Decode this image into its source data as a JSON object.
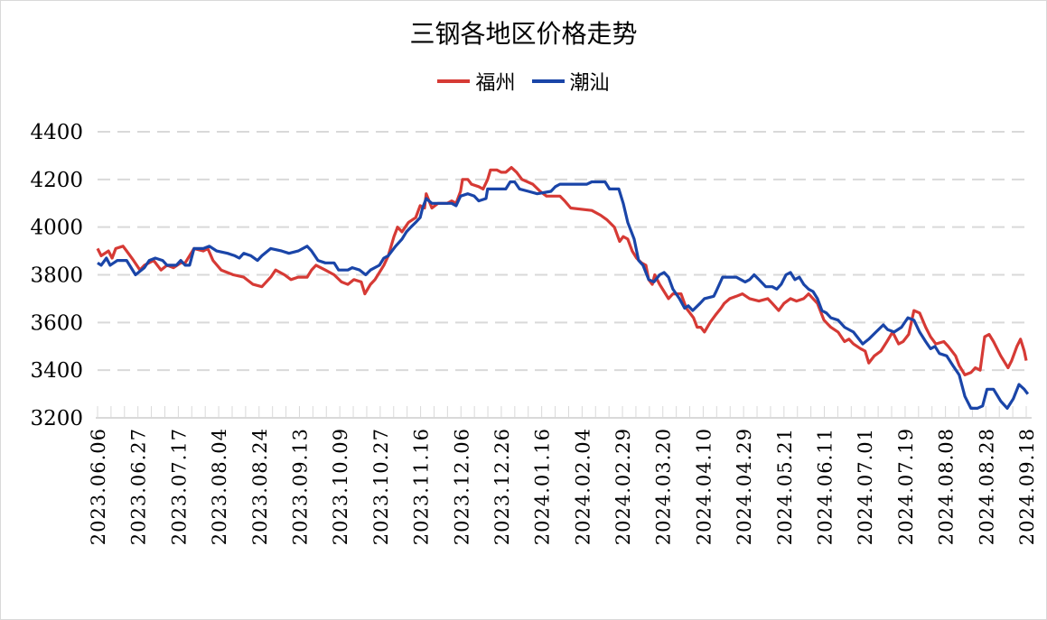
{
  "chart_data": {
    "type": "line",
    "title": "三钢各地区价格走势",
    "xlabel": "",
    "ylabel": "",
    "ylim": [
      3200,
      4400
    ],
    "yticks": [
      3200,
      3400,
      3600,
      3800,
      4000,
      4200,
      4400
    ],
    "grid": true,
    "legend_position": "top",
    "categories": [
      "2023.06.06",
      "2023.06.27",
      "2023.07.17",
      "2023.08.04",
      "2023.08.24",
      "2023.09.13",
      "2023.10.09",
      "2023.10.27",
      "2023.11.16",
      "2023.12.06",
      "2023.12.26",
      "2024.01.16",
      "2024.02.04",
      "2024.02.29",
      "2024.03.20",
      "2024.04.10",
      "2024.04.29",
      "2024.05.21",
      "2024.06.11",
      "2024.07.01",
      "2024.07.19",
      "2024.08.08",
      "2024.08.28",
      "2024.09.18"
    ],
    "series": [
      {
        "name": "福州",
        "color": "#d63a35",
        "x": [
          0,
          0.09,
          0.27,
          0.36,
          0.45,
          0.63,
          0.72,
          0.89,
          1.05,
          1.16,
          1.39,
          1.57,
          1.72,
          1.88,
          2.06,
          2.17,
          2.39,
          2.62,
          2.73,
          2.86,
          3.06,
          3.36,
          3.62,
          3.85,
          4.07,
          4.29,
          4.41,
          4.63,
          4.79,
          4.97,
          5.19,
          5.3,
          5.41,
          5.64,
          5.86,
          6.04,
          6.2,
          6.35,
          6.53,
          6.62,
          6.76,
          6.87,
          6.98,
          7.09,
          7.2,
          7.34,
          7.43,
          7.54,
          7.7,
          7.88,
          7.99,
          8.1,
          8.14,
          8.28,
          8.43,
          8.66,
          8.77,
          8.88,
          8.99,
          9.04,
          9.17,
          9.26,
          9.44,
          9.55,
          9.66,
          9.73,
          9.89,
          10.0,
          10.11,
          10.25,
          10.38,
          10.51,
          10.78,
          10.96,
          11.12,
          11.45,
          11.57,
          11.72,
          12.24,
          12.46,
          12.62,
          12.8,
          12.93,
          13.02,
          13.13,
          13.24,
          13.35,
          13.47,
          13.58,
          13.65,
          13.74,
          13.8,
          13.92,
          14.03,
          14.14,
          14.25,
          14.36,
          14.45,
          14.58,
          14.76,
          14.85,
          14.94,
          15.03,
          15.17,
          15.3,
          15.44,
          15.52,
          15.66,
          15.82,
          15.97,
          16.15,
          16.38,
          16.6,
          16.71,
          16.87,
          17.0,
          17.16,
          17.31,
          17.49,
          17.61,
          17.72,
          17.83,
          17.99,
          18.16,
          18.34,
          18.5,
          18.61,
          18.72,
          18.9,
          19.01,
          19.1,
          19.24,
          19.4,
          19.55,
          19.69,
          19.84,
          19.95,
          20.09,
          20.22,
          20.36,
          20.51,
          20.63,
          20.76,
          20.96,
          21.07,
          21.25,
          21.34,
          21.48,
          21.63,
          21.74,
          21.86,
          21.97,
          22.08,
          22.19,
          22.37,
          22.55,
          22.64,
          22.77,
          22.86,
          22.95,
          23.0
        ],
        "y": [
          3910,
          3880,
          3900,
          3870,
          3910,
          3920,
          3900,
          3860,
          3820,
          3840,
          3860,
          3820,
          3840,
          3830,
          3850,
          3850,
          3910,
          3900,
          3910,
          3860,
          3820,
          3800,
          3790,
          3760,
          3750,
          3790,
          3820,
          3800,
          3780,
          3790,
          3790,
          3820,
          3840,
          3820,
          3800,
          3770,
          3760,
          3780,
          3770,
          3720,
          3760,
          3780,
          3810,
          3840,
          3880,
          3960,
          4000,
          3980,
          4020,
          4040,
          4090,
          4080,
          4140,
          4080,
          4100,
          4100,
          4110,
          4100,
          4150,
          4200,
          4200,
          4180,
          4170,
          4160,
          4200,
          4240,
          4240,
          4230,
          4230,
          4250,
          4230,
          4200,
          4180,
          4150,
          4130,
          4130,
          4110,
          4080,
          4070,
          4050,
          4030,
          4000,
          3940,
          3960,
          3950,
          3900,
          3870,
          3850,
          3840,
          3780,
          3760,
          3800,
          3760,
          3730,
          3700,
          3720,
          3720,
          3720,
          3660,
          3620,
          3580,
          3580,
          3560,
          3600,
          3630,
          3660,
          3680,
          3700,
          3710,
          3720,
          3700,
          3690,
          3700,
          3680,
          3650,
          3680,
          3700,
          3690,
          3700,
          3720,
          3700,
          3680,
          3610,
          3580,
          3560,
          3520,
          3530,
          3510,
          3490,
          3480,
          3430,
          3460,
          3480,
          3520,
          3560,
          3510,
          3520,
          3550,
          3650,
          3640,
          3580,
          3540,
          3510,
          3520,
          3500,
          3460,
          3420,
          3380,
          3390,
          3410,
          3400,
          3540,
          3550,
          3520,
          3460,
          3410,
          3440,
          3500,
          3530,
          3480,
          3440
        ]
      },
      {
        "name": "潮汕",
        "color": "#1a45a8",
        "x": [
          0,
          0.09,
          0.22,
          0.31,
          0.49,
          0.72,
          0.94,
          1.16,
          1.28,
          1.43,
          1.61,
          1.72,
          1.95,
          2.06,
          2.17,
          2.28,
          2.39,
          2.62,
          2.77,
          2.95,
          3.22,
          3.4,
          3.51,
          3.62,
          3.8,
          3.96,
          4.07,
          4.29,
          4.56,
          4.74,
          4.97,
          5.19,
          5.3,
          5.46,
          5.64,
          5.86,
          5.97,
          6.2,
          6.31,
          6.49,
          6.64,
          6.76,
          6.98,
          7.09,
          7.2,
          7.38,
          7.54,
          7.65,
          7.76,
          7.88,
          7.99,
          8.05,
          8.14,
          8.28,
          8.77,
          8.88,
          8.99,
          9.17,
          9.33,
          9.44,
          9.62,
          9.66,
          10.11,
          10.22,
          10.33,
          10.45,
          10.67,
          10.89,
          11.23,
          11.34,
          11.45,
          12.12,
          12.24,
          12.57,
          12.68,
          12.91,
          13.02,
          13.13,
          13.29,
          13.4,
          13.51,
          13.65,
          13.78,
          13.92,
          14.03,
          14.14,
          14.25,
          14.41,
          14.54,
          14.63,
          14.74,
          14.92,
          15.03,
          15.26,
          15.32,
          15.48,
          15.82,
          15.93,
          16.04,
          16.15,
          16.26,
          16.38,
          16.55,
          16.71,
          16.82,
          16.93,
          17.05,
          17.16,
          17.27,
          17.38,
          17.49,
          17.61,
          17.72,
          17.83,
          17.94,
          18.05,
          18.16,
          18.34,
          18.5,
          18.72,
          18.95,
          19.1,
          19.28,
          19.46,
          19.57,
          19.73,
          19.91,
          20.07,
          20.22,
          20.36,
          20.51,
          20.63,
          20.74,
          20.85,
          21.03,
          21.18,
          21.34,
          21.48,
          21.63,
          21.79,
          21.92,
          22.03,
          22.19,
          22.37,
          22.53,
          22.68,
          22.82,
          22.95,
          23.04
        ],
        "y": [
          3850,
          3840,
          3870,
          3840,
          3860,
          3860,
          3800,
          3830,
          3860,
          3870,
          3860,
          3840,
          3840,
          3860,
          3840,
          3840,
          3910,
          3910,
          3920,
          3900,
          3890,
          3880,
          3870,
          3890,
          3880,
          3860,
          3880,
          3910,
          3900,
          3890,
          3900,
          3920,
          3900,
          3860,
          3850,
          3850,
          3820,
          3820,
          3830,
          3820,
          3800,
          3820,
          3840,
          3870,
          3880,
          3920,
          3950,
          3980,
          4000,
          4020,
          4040,
          4080,
          4120,
          4100,
          4100,
          4090,
          4130,
          4140,
          4130,
          4110,
          4120,
          4160,
          4160,
          4190,
          4190,
          4160,
          4150,
          4140,
          4150,
          4170,
          4180,
          4180,
          4190,
          4190,
          4160,
          4160,
          4100,
          4020,
          3950,
          3860,
          3840,
          3780,
          3770,
          3800,
          3810,
          3790,
          3740,
          3700,
          3660,
          3670,
          3650,
          3680,
          3700,
          3710,
          3730,
          3790,
          3790,
          3780,
          3770,
          3780,
          3800,
          3780,
          3750,
          3750,
          3740,
          3760,
          3800,
          3810,
          3780,
          3790,
          3760,
          3740,
          3730,
          3700,
          3650,
          3640,
          3620,
          3610,
          3580,
          3560,
          3510,
          3530,
          3560,
          3590,
          3570,
          3560,
          3580,
          3620,
          3610,
          3560,
          3520,
          3490,
          3500,
          3470,
          3460,
          3420,
          3380,
          3290,
          3240,
          3240,
          3250,
          3320,
          3320,
          3270,
          3240,
          3280,
          3340,
          3320,
          3300
        ]
      }
    ]
  }
}
